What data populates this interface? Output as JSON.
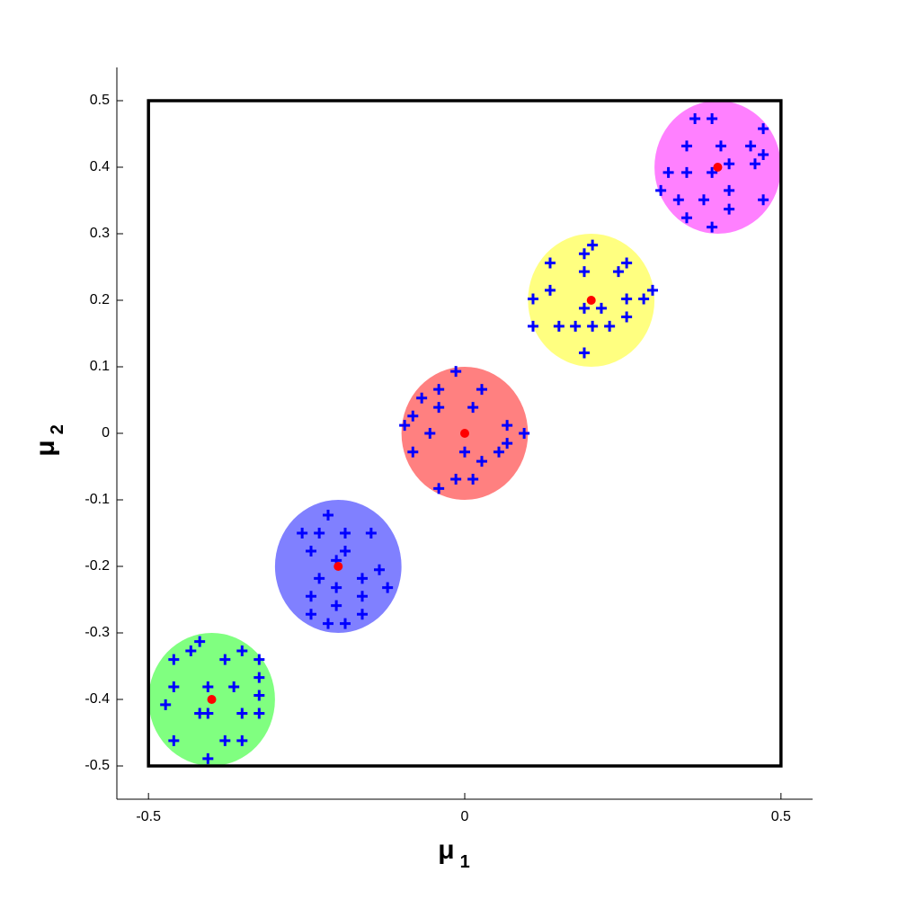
{
  "chart_data": {
    "type": "scatter",
    "x_label": {
      "symbol": "μ",
      "subscript": "1"
    },
    "y_label": {
      "symbol": "μ",
      "subscript": "2"
    },
    "xlim": [
      -0.55,
      0.55
    ],
    "ylim": [
      -0.55,
      0.55
    ],
    "xticks": [
      -0.5,
      0,
      0.5
    ],
    "yticks": [
      -0.5,
      -0.4,
      -0.3,
      -0.2,
      -0.1,
      0,
      0.1,
      0.2,
      0.3,
      0.4,
      0.5
    ],
    "box": {
      "x": [
        -0.5,
        0.5
      ],
      "y": [
        -0.5,
        0.5
      ],
      "color": "#000000"
    },
    "regions": [
      {
        "center_x": -0.4,
        "center_y": -0.4,
        "radius": 0.1,
        "color": "#80ff80"
      },
      {
        "center_x": -0.2,
        "center_y": -0.2,
        "radius": 0.1,
        "color": "#8080ff"
      },
      {
        "center_x": 0,
        "center_y": 0,
        "radius": 0.1,
        "color": "#ff8080"
      },
      {
        "center_x": 0.2,
        "center_y": 0.2,
        "radius": 0.1,
        "color": "#ffff80"
      },
      {
        "center_x": 0.4,
        "center_y": 0.4,
        "radius": 0.1,
        "color": "#ff80ff"
      }
    ],
    "series": [
      {
        "color": "#0000ff",
        "marker": "plus",
        "x": [
          0.364,
          0.391,
          0.472,
          0.351,
          0.405,
          0.452,
          0.322,
          0.351,
          0.391,
          0.418,
          0.459,
          0.472,
          0.31,
          0.338,
          0.378,
          0.418,
          0.351,
          0.418,
          0.472,
          0.391,
          0.202,
          0.189,
          0.135,
          0.189,
          0.256,
          0.243,
          0.135,
          0.108,
          0.256,
          0.283,
          0.297,
          0.189,
          0.216,
          0.108,
          0.149,
          0.175,
          0.202,
          0.229,
          0.256,
          0.189,
          -0.014,
          -0.041,
          -0.068,
          0.027,
          -0.082,
          -0.041,
          0.013,
          -0.095,
          -0.055,
          0.094,
          0.067,
          -0.082,
          0,
          0.067,
          0.054,
          0.027,
          -0.014,
          0.013,
          -0.041,
          -0.216,
          -0.257,
          -0.23,
          -0.189,
          -0.148,
          -0.243,
          -0.189,
          -0.135,
          -0.203,
          -0.122,
          -0.23,
          -0.162,
          -0.203,
          -0.243,
          -0.162,
          -0.203,
          -0.243,
          -0.162,
          -0.216,
          -0.189,
          -0.419,
          -0.433,
          -0.46,
          -0.379,
          -0.352,
          -0.325,
          -0.46,
          -0.406,
          -0.365,
          -0.325,
          -0.473,
          -0.419,
          -0.406,
          -0.352,
          -0.325,
          -0.325,
          -0.46,
          -0.379,
          -0.352,
          -0.406
        ],
        "values": [
          0.473,
          0.473,
          0.458,
          0.432,
          0.432,
          0.432,
          0.392,
          0.392,
          0.392,
          0.405,
          0.405,
          0.419,
          0.365,
          0.351,
          0.351,
          0.365,
          0.324,
          0.337,
          0.351,
          0.31,
          0.283,
          0.27,
          0.256,
          0.243,
          0.256,
          0.243,
          0.215,
          0.202,
          0.202,
          0.202,
          0.215,
          0.188,
          0.188,
          0.161,
          0.161,
          0.161,
          0.161,
          0.161,
          0.175,
          0.121,
          0.093,
          0.066,
          0.053,
          0.066,
          0.026,
          0.039,
          0.039,
          0.012,
          0,
          0,
          0.012,
          -0.028,
          -0.028,
          -0.015,
          -0.028,
          -0.042,
          -0.069,
          -0.069,
          -0.083,
          -0.123,
          -0.15,
          -0.15,
          -0.15,
          -0.15,
          -0.177,
          -0.177,
          -0.205,
          -0.191,
          -0.232,
          -0.218,
          -0.218,
          -0.232,
          -0.245,
          -0.245,
          -0.259,
          -0.272,
          -0.272,
          -0.286,
          -0.286,
          -0.313,
          -0.327,
          -0.34,
          -0.34,
          -0.327,
          -0.34,
          -0.381,
          -0.381,
          -0.381,
          -0.367,
          -0.408,
          -0.421,
          -0.421,
          -0.421,
          -0.394,
          -0.421,
          -0.462,
          -0.462,
          -0.462,
          -0.489
        ]
      },
      {
        "color": "#ff0000",
        "marker": "dot",
        "x": [
          -0.4,
          -0.2,
          0,
          0.2,
          0.4
        ],
        "values": [
          -0.4,
          -0.2,
          0,
          0.2,
          0.4
        ]
      }
    ]
  }
}
